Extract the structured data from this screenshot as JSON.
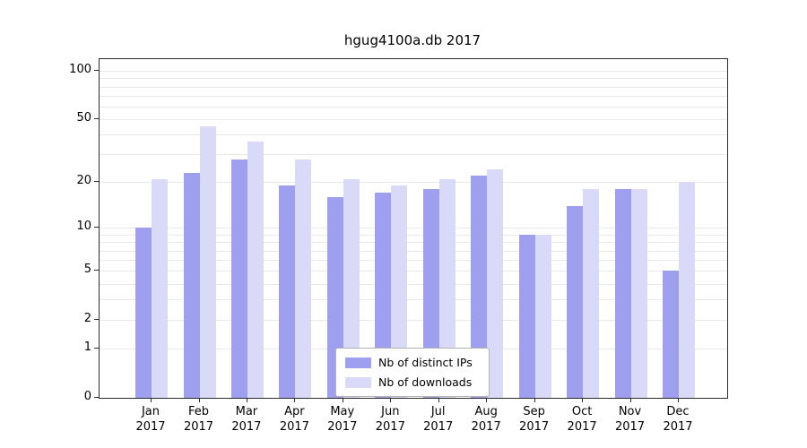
{
  "title": "hgug4100a.db 2017",
  "chart_data": {
    "type": "bar",
    "title": "hgug4100a.db 2017",
    "scale": "log1p",
    "grid": true,
    "legend_position": "lower center",
    "year": "2017",
    "categories": [
      "Jan",
      "Feb",
      "Mar",
      "Apr",
      "May",
      "Jun",
      "Jul",
      "Aug",
      "Sep",
      "Oct",
      "Nov",
      "Dec"
    ],
    "series": [
      {
        "name": "Nb of distinct IPs",
        "color": "#9f9ff0",
        "values": [
          10,
          23,
          28,
          19,
          16,
          17,
          18,
          22,
          9,
          14,
          18,
          5
        ]
      },
      {
        "name": "Nb of downloads",
        "color": "#d9d9f8",
        "values": [
          21,
          45,
          36,
          28,
          21,
          19,
          21,
          24,
          9,
          18,
          18,
          20
        ]
      }
    ],
    "yticks": [
      0,
      1,
      2,
      5,
      10,
      20,
      50,
      100
    ],
    "grid_values": [
      1,
      2,
      3,
      4,
      5,
      6,
      7,
      8,
      9,
      10,
      20,
      30,
      40,
      50,
      60,
      70,
      80,
      90,
      100
    ],
    "ylim": [
      0,
      100
    ]
  }
}
